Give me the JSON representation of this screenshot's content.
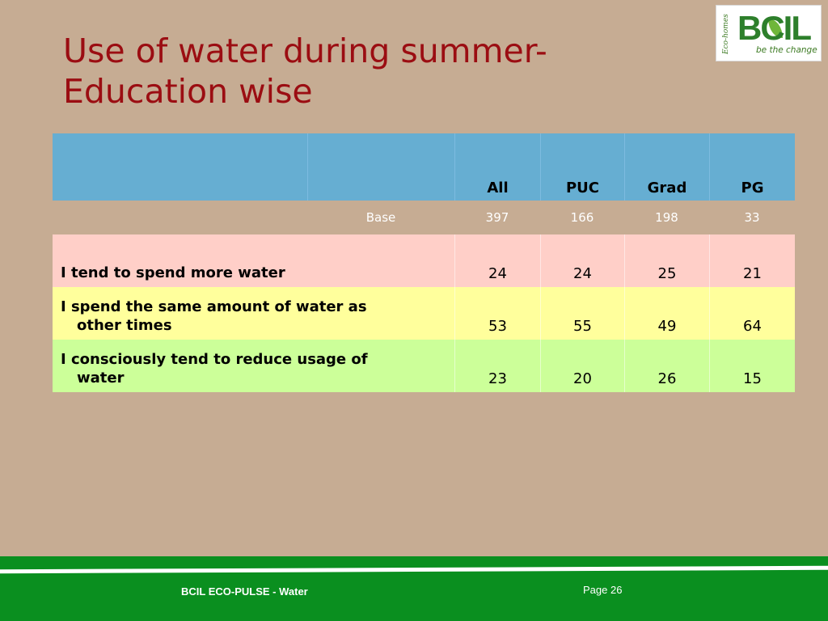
{
  "title": {
    "line1": "Use of water during summer-",
    "line2": "Education wise"
  },
  "logo": {
    "side_text": "Eco-homes",
    "mark": "BCIL",
    "tagline": "be the change"
  },
  "table": {
    "columns": [
      "All",
      "PUC",
      "Grad",
      "PG"
    ],
    "base": {
      "label": "Base",
      "values": [
        "397",
        "166",
        "198",
        "33"
      ]
    },
    "rows": [
      {
        "label_line1": "I tend to spend more water",
        "label_line2": "",
        "values": [
          "24",
          "24",
          "25",
          "21"
        ]
      },
      {
        "label_line1": "I spend the same amount of water as",
        "label_line2": "other times",
        "values": [
          "53",
          "55",
          "49",
          "64"
        ]
      },
      {
        "label_line1": "I consciously tend to reduce usage of",
        "label_line2": "water",
        "values": [
          "23",
          "20",
          "26",
          "15"
        ]
      }
    ]
  },
  "colors": {
    "background": "#c6ac93",
    "title": "#9b0d12",
    "header": "#66aed2",
    "row1": "#ffcfc8",
    "row2": "#ffff9c",
    "row3": "#ccff99",
    "footer": "#0a8f1f"
  },
  "footer": {
    "text": "BCIL ECO-PULSE - Water",
    "page": "Page 26"
  }
}
